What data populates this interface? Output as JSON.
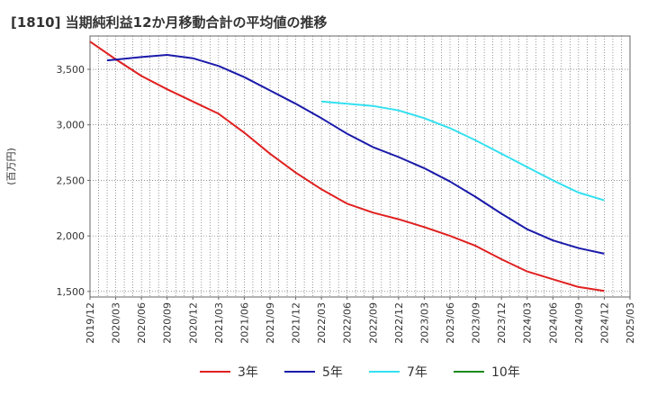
{
  "chart_data": {
    "type": "line",
    "title": "[1810]  当期純利益12か月移動合計の平均値の推移",
    "ylabel": "(百万円)",
    "xlabel": "",
    "ylim": [
      1450,
      3800
    ],
    "yticks": [
      1500,
      2000,
      2500,
      3000,
      3500
    ],
    "ytick_labels": [
      "1,500",
      "2,000",
      "2,500",
      "3,000",
      "3,500"
    ],
    "xticks": [
      "2019/12",
      "2020/03",
      "2020/06",
      "2020/09",
      "2020/12",
      "2021/03",
      "2021/06",
      "2021/09",
      "2021/12",
      "2022/03",
      "2022/06",
      "2022/09",
      "2022/12",
      "2023/03",
      "2023/06",
      "2023/09",
      "2023/12",
      "2024/03",
      "2024/06",
      "2024/09",
      "2024/12",
      "2025/03"
    ],
    "grid": true,
    "legend_position": "bottom",
    "series": [
      {
        "name": "3年",
        "color": "#e02020",
        "points": [
          [
            "2019/12",
            3750
          ],
          [
            "2020/03",
            3590
          ],
          [
            "2020/06",
            3440
          ],
          [
            "2020/09",
            3320
          ],
          [
            "2020/12",
            3210
          ],
          [
            "2021/03",
            3100
          ],
          [
            "2021/06",
            2930
          ],
          [
            "2021/09",
            2740
          ],
          [
            "2021/12",
            2570
          ],
          [
            "2022/03",
            2420
          ],
          [
            "2022/06",
            2290
          ],
          [
            "2022/09",
            2210
          ],
          [
            "2022/12",
            2150
          ],
          [
            "2023/03",
            2080
          ],
          [
            "2023/06",
            2000
          ],
          [
            "2023/09",
            1910
          ],
          [
            "2023/12",
            1790
          ],
          [
            "2024/03",
            1680
          ],
          [
            "2024/06",
            1610
          ],
          [
            "2024/09",
            1540
          ],
          [
            "2024/12",
            1505
          ]
        ]
      },
      {
        "name": "5年",
        "color": "#1a1aaa",
        "points": [
          [
            "2020/02",
            3580
          ],
          [
            "2020/06",
            3610
          ],
          [
            "2020/09",
            3630
          ],
          [
            "2020/12",
            3600
          ],
          [
            "2021/03",
            3530
          ],
          [
            "2021/06",
            3430
          ],
          [
            "2021/09",
            3310
          ],
          [
            "2021/12",
            3190
          ],
          [
            "2022/03",
            3060
          ],
          [
            "2022/06",
            2920
          ],
          [
            "2022/09",
            2800
          ],
          [
            "2022/12",
            2710
          ],
          [
            "2023/03",
            2610
          ],
          [
            "2023/06",
            2490
          ],
          [
            "2023/09",
            2350
          ],
          [
            "2023/12",
            2200
          ],
          [
            "2024/03",
            2060
          ],
          [
            "2024/06",
            1960
          ],
          [
            "2024/09",
            1890
          ],
          [
            "2024/12",
            1840
          ]
        ]
      },
      {
        "name": "7年",
        "color": "#33e0f0",
        "points": [
          [
            "2022/03",
            3210
          ],
          [
            "2022/06",
            3190
          ],
          [
            "2022/09",
            3170
          ],
          [
            "2022/12",
            3130
          ],
          [
            "2023/03",
            3060
          ],
          [
            "2023/06",
            2970
          ],
          [
            "2023/09",
            2860
          ],
          [
            "2023/12",
            2740
          ],
          [
            "2024/03",
            2620
          ],
          [
            "2024/06",
            2500
          ],
          [
            "2024/09",
            2390
          ],
          [
            "2024/12",
            2320
          ]
        ]
      },
      {
        "name": "10年",
        "color": "#1a8a1a",
        "points": []
      }
    ]
  }
}
